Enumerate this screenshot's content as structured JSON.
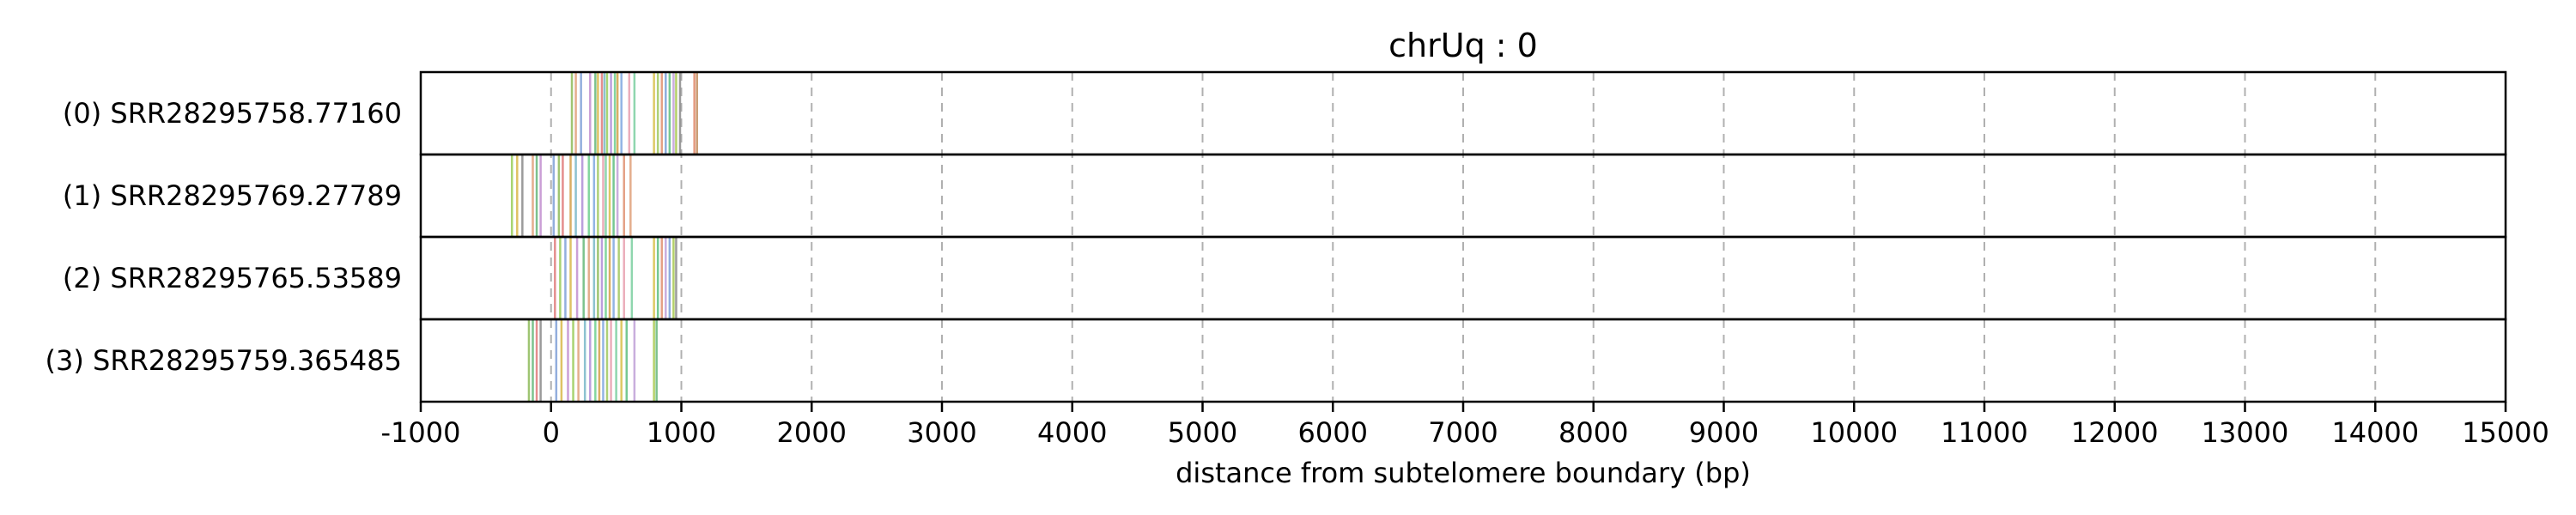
{
  "chart_data": {
    "type": "event-strip",
    "title": "chrUq : 0",
    "xlabel": "distance from subtelomere boundary (bp)",
    "xlim": [
      -1000,
      15000
    ],
    "xticks": [
      -1000,
      0,
      1000,
      2000,
      3000,
      4000,
      5000,
      6000,
      7000,
      8000,
      9000,
      10000,
      11000,
      12000,
      13000,
      14000,
      15000
    ],
    "grid": "vertical-dashed",
    "rows": [
      {
        "label": "(0) SRR28295758.77160",
        "marks": [
          {
            "x": 160,
            "color": "#8fbc5a"
          },
          {
            "x": 190,
            "color": "#e0a07a"
          },
          {
            "x": 230,
            "color": "#7fa0d8"
          },
          {
            "x": 300,
            "color": "#c28fd0"
          },
          {
            "x": 340,
            "color": "#66b87a"
          },
          {
            "x": 360,
            "color": "#d9b84a"
          },
          {
            "x": 390,
            "color": "#e07a7a"
          },
          {
            "x": 410,
            "color": "#7ab8c8"
          },
          {
            "x": 430,
            "color": "#9acd5a"
          },
          {
            "x": 460,
            "color": "#b08fd8"
          },
          {
            "x": 490,
            "color": "#6fcf8f"
          },
          {
            "x": 510,
            "color": "#d4a04a"
          },
          {
            "x": 540,
            "color": "#80a8e0"
          },
          {
            "x": 600,
            "color": "#e8a0b0"
          },
          {
            "x": 640,
            "color": "#7ccfa0"
          },
          {
            "x": 790,
            "color": "#d8c04a"
          },
          {
            "x": 820,
            "color": "#a0c860"
          },
          {
            "x": 850,
            "color": "#e09070"
          },
          {
            "x": 880,
            "color": "#7a9fd8"
          },
          {
            "x": 910,
            "color": "#5fbf7f"
          },
          {
            "x": 940,
            "color": "#c0a0d8"
          },
          {
            "x": 960,
            "color": "#a8c850"
          },
          {
            "x": 990,
            "color": "#8a8a8a"
          },
          {
            "x": 1100,
            "color": "#e08a6a"
          },
          {
            "x": 1120,
            "color": "#c08a5a"
          }
        ]
      },
      {
        "label": "(1) SRR28295769.27789",
        "marks": [
          {
            "x": -300,
            "color": "#9acd5a"
          },
          {
            "x": -260,
            "color": "#d9b84a"
          },
          {
            "x": -220,
            "color": "#8a8a8a"
          },
          {
            "x": -140,
            "color": "#e0a07a"
          },
          {
            "x": -110,
            "color": "#66b87a"
          },
          {
            "x": -80,
            "color": "#c28fd0"
          },
          {
            "x": 20,
            "color": "#7fa0d8"
          },
          {
            "x": 60,
            "color": "#8fbc5a"
          },
          {
            "x": 90,
            "color": "#e07a7a"
          },
          {
            "x": 150,
            "color": "#d4a04a"
          },
          {
            "x": 190,
            "color": "#7ab8c8"
          },
          {
            "x": 240,
            "color": "#b08fd8"
          },
          {
            "x": 290,
            "color": "#6fcf8f"
          },
          {
            "x": 330,
            "color": "#80a8e0"
          },
          {
            "x": 360,
            "color": "#a0c860"
          },
          {
            "x": 400,
            "color": "#e8a0b0"
          },
          {
            "x": 420,
            "color": "#7ccfa0"
          },
          {
            "x": 450,
            "color": "#d8c04a"
          },
          {
            "x": 480,
            "color": "#5fbf7f"
          },
          {
            "x": 510,
            "color": "#c0a0d8"
          },
          {
            "x": 560,
            "color": "#e09070"
          },
          {
            "x": 610,
            "color": "#e0a07a"
          }
        ]
      },
      {
        "label": "(2) SRR28295765.53589",
        "marks": [
          {
            "x": 30,
            "color": "#e07a7a"
          },
          {
            "x": 70,
            "color": "#9acd5a"
          },
          {
            "x": 110,
            "color": "#7fa0d8"
          },
          {
            "x": 150,
            "color": "#d9b84a"
          },
          {
            "x": 200,
            "color": "#c28fd0"
          },
          {
            "x": 250,
            "color": "#66b87a"
          },
          {
            "x": 290,
            "color": "#e0a07a"
          },
          {
            "x": 330,
            "color": "#7ab8c8"
          },
          {
            "x": 360,
            "color": "#8fbc5a"
          },
          {
            "x": 390,
            "color": "#b08fd8"
          },
          {
            "x": 420,
            "color": "#6fcf8f"
          },
          {
            "x": 450,
            "color": "#d4a04a"
          },
          {
            "x": 480,
            "color": "#80a8e0"
          },
          {
            "x": 520,
            "color": "#a0c860"
          },
          {
            "x": 560,
            "color": "#e8a0b0"
          },
          {
            "x": 620,
            "color": "#7ccfa0"
          },
          {
            "x": 790,
            "color": "#d8c04a"
          },
          {
            "x": 820,
            "color": "#5fbf7f"
          },
          {
            "x": 850,
            "color": "#e09070"
          },
          {
            "x": 880,
            "color": "#c0a0d8"
          },
          {
            "x": 910,
            "color": "#7a9fd8"
          },
          {
            "x": 940,
            "color": "#a8c850"
          },
          {
            "x": 960,
            "color": "#8a8a8a"
          }
        ]
      },
      {
        "label": "(3) SRR28295759.365485",
        "marks": [
          {
            "x": -170,
            "color": "#8fbc5a"
          },
          {
            "x": -140,
            "color": "#66b87a"
          },
          {
            "x": -110,
            "color": "#e07a7a"
          },
          {
            "x": -80,
            "color": "#8a8a8a"
          },
          {
            "x": 40,
            "color": "#7fa0d8"
          },
          {
            "x": 80,
            "color": "#d9b84a"
          },
          {
            "x": 130,
            "color": "#c28fd0"
          },
          {
            "x": 170,
            "color": "#9acd5a"
          },
          {
            "x": 210,
            "color": "#e0a07a"
          },
          {
            "x": 260,
            "color": "#7ab8c8"
          },
          {
            "x": 300,
            "color": "#b08fd8"
          },
          {
            "x": 340,
            "color": "#6fcf8f"
          },
          {
            "x": 370,
            "color": "#d4a04a"
          },
          {
            "x": 400,
            "color": "#80a8e0"
          },
          {
            "x": 430,
            "color": "#a0c860"
          },
          {
            "x": 460,
            "color": "#e8a0b0"
          },
          {
            "x": 500,
            "color": "#7ccfa0"
          },
          {
            "x": 540,
            "color": "#d8c04a"
          },
          {
            "x": 580,
            "color": "#5fbf7f"
          },
          {
            "x": 640,
            "color": "#c0a0d8"
          },
          {
            "x": 790,
            "color": "#a8c850"
          },
          {
            "x": 810,
            "color": "#66b87a"
          }
        ]
      }
    ]
  }
}
